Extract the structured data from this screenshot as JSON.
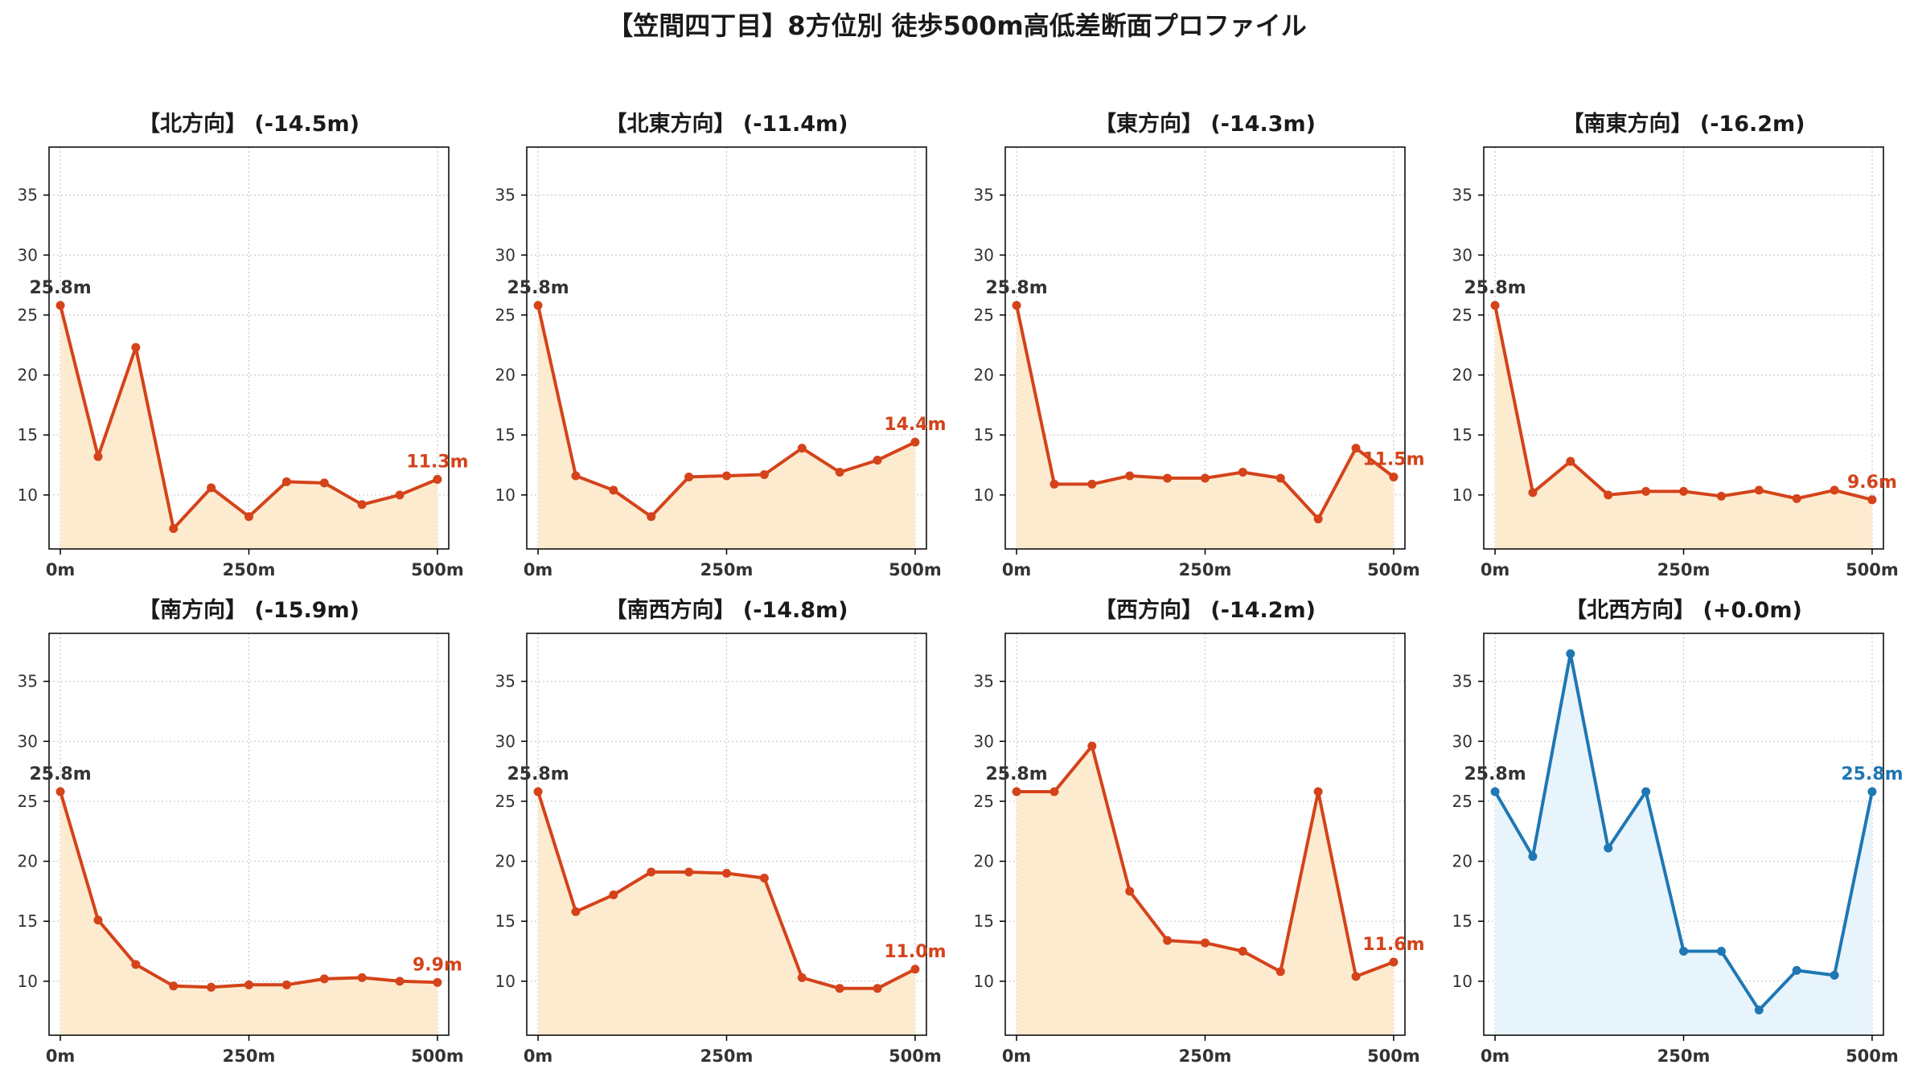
{
  "figure_title": "【笠間四丁目】8方位別 徒歩500m高低差断面プロファイル",
  "colors": {
    "down_line": "#d4431a",
    "down_fill": "#fdebd0",
    "flat_line": "#1f77b4",
    "flat_fill": "#e8f4fb",
    "start_label": "#333333",
    "grid": "#c8c8c8",
    "axis": "#000000",
    "tick_text": "#333333",
    "title_text": "#1a1a1a"
  },
  "chart_data": [
    {
      "type": "area",
      "title": "【北方向】 (-14.5m)",
      "trend": "down",
      "x": [
        0,
        50,
        100,
        150,
        200,
        250,
        300,
        350,
        400,
        450,
        500
      ],
      "y": [
        25.8,
        13.2,
        22.3,
        7.2,
        10.6,
        8.2,
        11.1,
        11.0,
        9.2,
        10.0,
        11.3
      ],
      "start_label": "25.8m",
      "end_label": "11.3m",
      "xlim": [
        -15,
        515
      ],
      "ylim": [
        5.5,
        39
      ],
      "xticks": [
        0,
        250,
        500
      ],
      "xtick_labels": [
        "0m",
        "250m",
        "500m"
      ],
      "yticks": [
        10,
        15,
        20,
        25,
        30,
        35
      ],
      "ytick_labels": [
        "10",
        "15",
        "20",
        "25",
        "30",
        "35"
      ],
      "grid": true
    },
    {
      "type": "area",
      "title": "【北東方向】 (-11.4m)",
      "trend": "down",
      "x": [
        0,
        50,
        100,
        150,
        200,
        250,
        300,
        350,
        400,
        450,
        500
      ],
      "y": [
        25.8,
        11.6,
        10.4,
        8.2,
        11.5,
        11.6,
        11.7,
        13.9,
        11.9,
        12.9,
        14.4
      ],
      "start_label": "25.8m",
      "end_label": "14.4m",
      "xlim": [
        -15,
        515
      ],
      "ylim": [
        5.5,
        39
      ],
      "xticks": [
        0,
        250,
        500
      ],
      "xtick_labels": [
        "0m",
        "250m",
        "500m"
      ],
      "yticks": [
        10,
        15,
        20,
        25,
        30,
        35
      ],
      "ytick_labels": [
        "10",
        "15",
        "20",
        "25",
        "30",
        "35"
      ],
      "grid": true
    },
    {
      "type": "area",
      "title": "【東方向】 (-14.3m)",
      "trend": "down",
      "x": [
        0,
        50,
        100,
        150,
        200,
        250,
        300,
        350,
        400,
        450,
        500
      ],
      "y": [
        25.8,
        10.9,
        10.9,
        11.6,
        11.4,
        11.4,
        11.9,
        11.4,
        8.0,
        13.9,
        11.5
      ],
      "start_label": "25.8m",
      "end_label": "11.5m",
      "xlim": [
        -15,
        515
      ],
      "ylim": [
        5.5,
        39
      ],
      "xticks": [
        0,
        250,
        500
      ],
      "xtick_labels": [
        "0m",
        "250m",
        "500m"
      ],
      "yticks": [
        10,
        15,
        20,
        25,
        30,
        35
      ],
      "ytick_labels": [
        "10",
        "15",
        "20",
        "25",
        "30",
        "35"
      ],
      "grid": true
    },
    {
      "type": "area",
      "title": "【南東方向】 (-16.2m)",
      "trend": "down",
      "x": [
        0,
        50,
        100,
        150,
        200,
        250,
        300,
        350,
        400,
        450,
        500
      ],
      "y": [
        25.8,
        10.2,
        12.8,
        10.0,
        10.3,
        10.3,
        9.9,
        10.4,
        9.7,
        10.4,
        9.6
      ],
      "start_label": "25.8m",
      "end_label": "9.6m",
      "xlim": [
        -15,
        515
      ],
      "ylim": [
        5.5,
        39
      ],
      "xticks": [
        0,
        250,
        500
      ],
      "xtick_labels": [
        "0m",
        "250m",
        "500m"
      ],
      "yticks": [
        10,
        15,
        20,
        25,
        30,
        35
      ],
      "ytick_labels": [
        "10",
        "15",
        "20",
        "25",
        "30",
        "35"
      ],
      "grid": true
    },
    {
      "type": "area",
      "title": "【南方向】 (-15.9m)",
      "trend": "down",
      "x": [
        0,
        50,
        100,
        150,
        200,
        250,
        300,
        350,
        400,
        450,
        500
      ],
      "y": [
        25.8,
        15.1,
        11.4,
        9.6,
        9.5,
        9.7,
        9.7,
        10.2,
        10.3,
        10.0,
        9.9
      ],
      "start_label": "25.8m",
      "end_label": "9.9m",
      "xlim": [
        -15,
        515
      ],
      "ylim": [
        5.5,
        39
      ],
      "xticks": [
        0,
        250,
        500
      ],
      "xtick_labels": [
        "0m",
        "250m",
        "500m"
      ],
      "yticks": [
        10,
        15,
        20,
        25,
        30,
        35
      ],
      "ytick_labels": [
        "10",
        "15",
        "20",
        "25",
        "30",
        "35"
      ],
      "grid": true
    },
    {
      "type": "area",
      "title": "【南西方向】 (-14.8m)",
      "trend": "down",
      "x": [
        0,
        50,
        100,
        150,
        200,
        250,
        300,
        350,
        400,
        450,
        500
      ],
      "y": [
        25.8,
        15.8,
        17.2,
        19.1,
        19.1,
        19.0,
        18.6,
        10.3,
        9.4,
        9.4,
        11.0
      ],
      "start_label": "25.8m",
      "end_label": "11.0m",
      "xlim": [
        -15,
        515
      ],
      "ylim": [
        5.5,
        39
      ],
      "xticks": [
        0,
        250,
        500
      ],
      "xtick_labels": [
        "0m",
        "250m",
        "500m"
      ],
      "yticks": [
        10,
        15,
        20,
        25,
        30,
        35
      ],
      "ytick_labels": [
        "10",
        "15",
        "20",
        "25",
        "30",
        "35"
      ],
      "grid": true
    },
    {
      "type": "area",
      "title": "【西方向】 (-14.2m)",
      "trend": "down",
      "x": [
        0,
        50,
        100,
        150,
        200,
        250,
        300,
        350,
        400,
        450,
        500
      ],
      "y": [
        25.8,
        25.8,
        29.6,
        17.5,
        13.4,
        13.2,
        12.5,
        10.8,
        25.8,
        10.4,
        11.6
      ],
      "start_label": "25.8m",
      "end_label": "11.6m",
      "xlim": [
        -15,
        515
      ],
      "ylim": [
        5.5,
        39
      ],
      "xticks": [
        0,
        250,
        500
      ],
      "xtick_labels": [
        "0m",
        "250m",
        "500m"
      ],
      "yticks": [
        10,
        15,
        20,
        25,
        30,
        35
      ],
      "ytick_labels": [
        "10",
        "15",
        "20",
        "25",
        "30",
        "35"
      ],
      "grid": true
    },
    {
      "type": "area",
      "title": "【北西方向】 (+0.0m)",
      "trend": "flat",
      "x": [
        0,
        50,
        100,
        150,
        200,
        250,
        300,
        350,
        400,
        450,
        500
      ],
      "y": [
        25.8,
        20.4,
        37.3,
        21.1,
        25.8,
        12.5,
        12.5,
        7.6,
        10.9,
        10.5,
        25.8
      ],
      "start_label": "25.8m",
      "end_label": "25.8m",
      "xlim": [
        -15,
        515
      ],
      "ylim": [
        5.5,
        39
      ],
      "xticks": [
        0,
        250,
        500
      ],
      "xtick_labels": [
        "0m",
        "250m",
        "500m"
      ],
      "yticks": [
        10,
        15,
        20,
        25,
        30,
        35
      ],
      "ytick_labels": [
        "10",
        "15",
        "20",
        "25",
        "30",
        "35"
      ],
      "grid": true
    }
  ]
}
